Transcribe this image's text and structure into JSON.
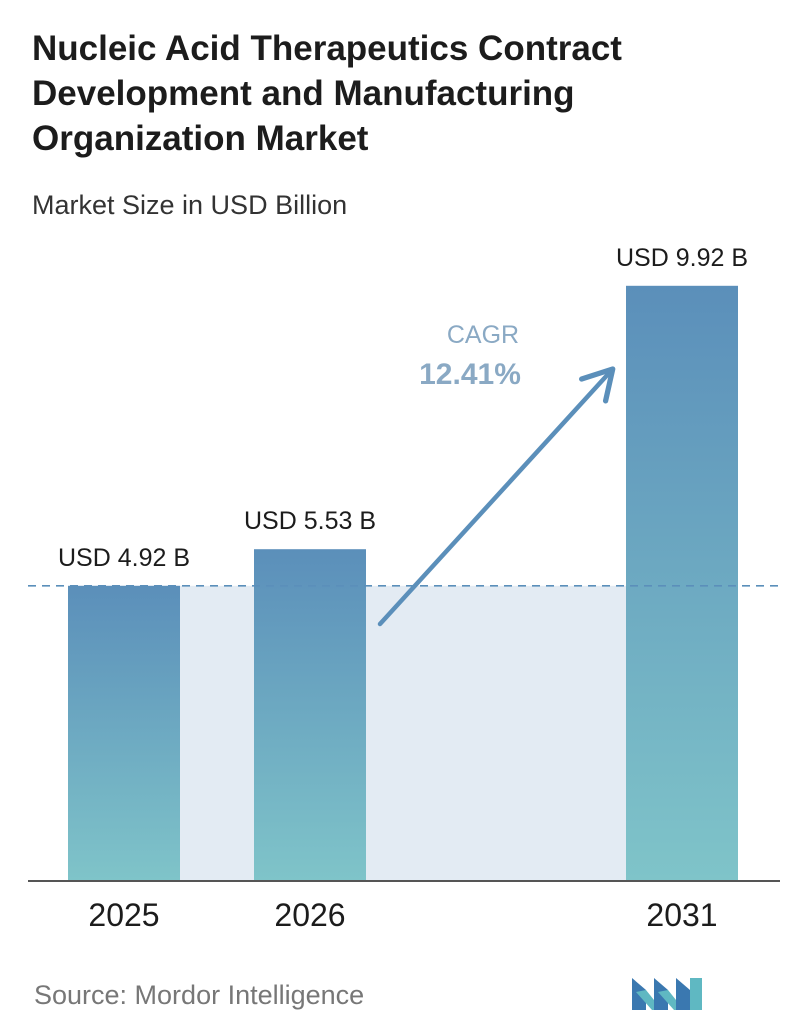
{
  "title": "Nucleic Acid Therapeutics Contract Development and Manufacturing Organization Market",
  "subtitle": "Market Size in USD Billion",
  "source": "Source: Mordor Intelligence",
  "logo": "mordor-intelligence-logo",
  "chart_data": {
    "type": "bar",
    "categories": [
      "2025",
      "2026",
      "2031"
    ],
    "values": [
      4.92,
      5.53,
      9.92
    ],
    "value_labels": [
      "USD 4.92 B",
      "USD 5.53 B",
      "USD 9.92 B"
    ],
    "unit": "USD Billion",
    "ylim": [
      0,
      10.6
    ],
    "grid": false,
    "baseline_reference": 4.92,
    "annotation": {
      "label": "CAGR",
      "value": "12.41%"
    },
    "colors": {
      "bar_top": "#5b8fba",
      "bar_bottom": "#7fc4c9",
      "band": "#e3ebf3",
      "arrow": "#5b8fba",
      "reference_line": "#5b8fba",
      "axis": "#555555"
    }
  }
}
